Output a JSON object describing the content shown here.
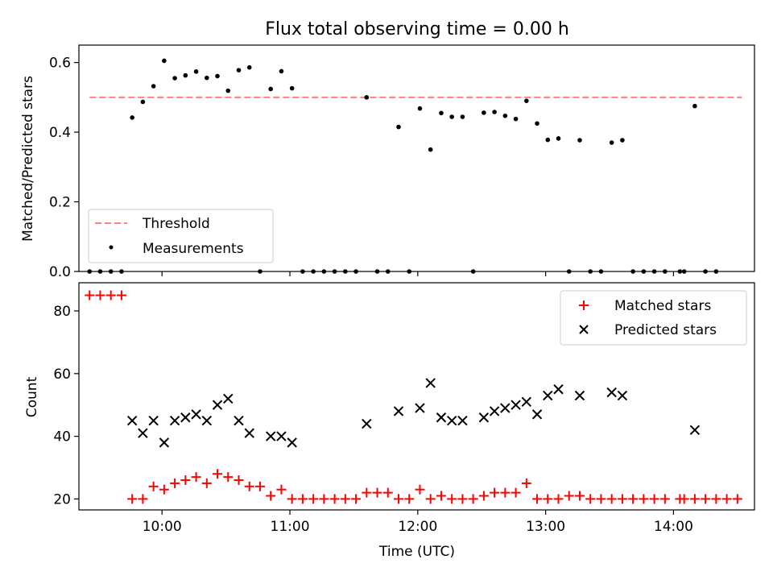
{
  "chart_data": [
    {
      "type": "scatter",
      "title": "Flux total observing time = 0.00 h",
      "xlabel": "",
      "ylabel": "Matched/Predicted stars",
      "xlim": [
        "09:21",
        "14:38"
      ],
      "ylim": [
        0,
        0.65
      ],
      "yticks": [
        0.0,
        0.2,
        0.4,
        0.6
      ],
      "ytick_labels": [
        "0.0",
        "0.2",
        "0.4",
        "0.6"
      ],
      "grid": false,
      "legend_position": "lower-left",
      "legend": [
        "Threshold",
        "Measurements"
      ],
      "threshold": {
        "name": "Threshold",
        "y": 0.5,
        "x_from": "09:26",
        "x_to": "14:32",
        "color": "#ff7f7f"
      },
      "series": [
        {
          "name": "Measurements",
          "color": "#000000",
          "x": [
            "09:26",
            "09:31",
            "09:36",
            "09:41",
            "09:46",
            "09:51",
            "09:56",
            "10:01",
            "10:06",
            "10:11",
            "10:16",
            "10:21",
            "10:26",
            "10:31",
            "10:36",
            "10:41",
            "10:46",
            "10:51",
            "10:56",
            "11:01",
            "11:06",
            "11:11",
            "11:16",
            "11:21",
            "11:26",
            "11:31",
            "11:36",
            "11:41",
            "11:46",
            "11:51",
            "11:56",
            "12:01",
            "12:06",
            "12:11",
            "12:16",
            "12:21",
            "12:26",
            "12:31",
            "12:36",
            "12:41",
            "12:46",
            "12:51",
            "12:56",
            "13:01",
            "13:06",
            "13:11",
            "13:16",
            "13:21",
            "13:26",
            "13:31",
            "13:36",
            "13:41",
            "13:46",
            "13:51",
            "13:56",
            "14:03",
            "14:05",
            "14:10",
            "14:15",
            "14:20"
          ],
          "y": [
            0,
            0,
            0,
            0,
            0.442,
            0.487,
            0.532,
            0.605,
            0.555,
            0.563,
            0.574,
            0.556,
            0.561,
            0.519,
            0.578,
            0.586,
            0,
            0.524,
            0.575,
            0.526,
            0,
            0,
            0,
            0,
            0,
            0,
            0.5,
            0,
            0,
            0.415,
            0,
            0.468,
            0.35,
            0.455,
            0.444,
            0.444,
            0,
            0.456,
            0.458,
            0.447,
            0.438,
            0.49,
            0.425,
            0.378,
            0.382,
            0,
            0.377,
            0,
            0,
            0.37,
            0.377,
            0,
            0,
            0,
            0,
            0,
            0,
            0.475,
            0,
            0
          ]
        }
      ]
    },
    {
      "type": "scatter",
      "title": "",
      "xlabel": "Time (UTC)",
      "ylabel": "Count",
      "xlim": [
        "09:21",
        "14:38"
      ],
      "ylim": [
        16.5,
        89
      ],
      "xticks": [
        "10:00",
        "11:00",
        "12:00",
        "13:00",
        "14:00"
      ],
      "yticks": [
        20,
        40,
        60,
        80
      ],
      "ytick_labels": [
        "20",
        "40",
        "60",
        "80"
      ],
      "grid": false,
      "legend_position": "top-right",
      "legend": [
        "Matched stars",
        "Predicted stars"
      ],
      "series": [
        {
          "name": "Matched stars",
          "marker": "+",
          "color": "#ff0000",
          "x": [
            "09:26",
            "09:31",
            "09:36",
            "09:41",
            "09:46",
            "09:51",
            "09:56",
            "10:01",
            "10:06",
            "10:11",
            "10:16",
            "10:21",
            "10:26",
            "10:31",
            "10:36",
            "10:41",
            "10:46",
            "10:51",
            "10:56",
            "11:01",
            "11:06",
            "11:11",
            "11:16",
            "11:21",
            "11:26",
            "11:31",
            "11:36",
            "11:41",
            "11:46",
            "11:51",
            "11:56",
            "12:01",
            "12:06",
            "12:11",
            "12:16",
            "12:21",
            "12:26",
            "12:31",
            "12:36",
            "12:41",
            "12:46",
            "12:51",
            "12:56",
            "13:01",
            "13:06",
            "13:11",
            "13:16",
            "13:21",
            "13:26",
            "13:31",
            "13:36",
            "13:41",
            "13:46",
            "13:51",
            "13:56",
            "14:03",
            "14:05",
            "14:10",
            "14:15",
            "14:20",
            "14:25",
            "14:30"
          ],
          "y": [
            85,
            85,
            85,
            85,
            20,
            20,
            24,
            23,
            25,
            26,
            27,
            25,
            28,
            27,
            26,
            24,
            24,
            21,
            23,
            20,
            20,
            20,
            20,
            20,
            20,
            20,
            22,
            22,
            22,
            20,
            20,
            23,
            20,
            21,
            20,
            20,
            20,
            21,
            22,
            22,
            22,
            25,
            20,
            20,
            20,
            21,
            21,
            20,
            20,
            20,
            20,
            20,
            20,
            20,
            20,
            20,
            20,
            20,
            20,
            20,
            20,
            20
          ]
        },
        {
          "name": "Predicted stars",
          "marker": "x",
          "color": "#000000",
          "x": [
            "09:46",
            "09:51",
            "09:56",
            "10:01",
            "10:06",
            "10:11",
            "10:16",
            "10:21",
            "10:26",
            "10:31",
            "10:36",
            "10:41",
            "10:51",
            "10:56",
            "11:01",
            "11:36",
            "11:51",
            "12:01",
            "12:06",
            "12:11",
            "12:16",
            "12:21",
            "12:31",
            "12:36",
            "12:41",
            "12:46",
            "12:51",
            "12:56",
            "13:01",
            "13:06",
            "13:16",
            "13:31",
            "13:36",
            "14:10"
          ],
          "y": [
            45,
            41,
            45,
            38,
            45,
            46,
            47,
            45,
            50,
            52,
            45,
            41,
            40,
            40,
            38,
            44,
            48,
            49,
            57,
            46,
            45,
            45,
            46,
            48,
            49,
            50,
            51,
            47,
            53,
            55,
            53,
            54,
            53,
            42
          ]
        }
      ]
    }
  ]
}
